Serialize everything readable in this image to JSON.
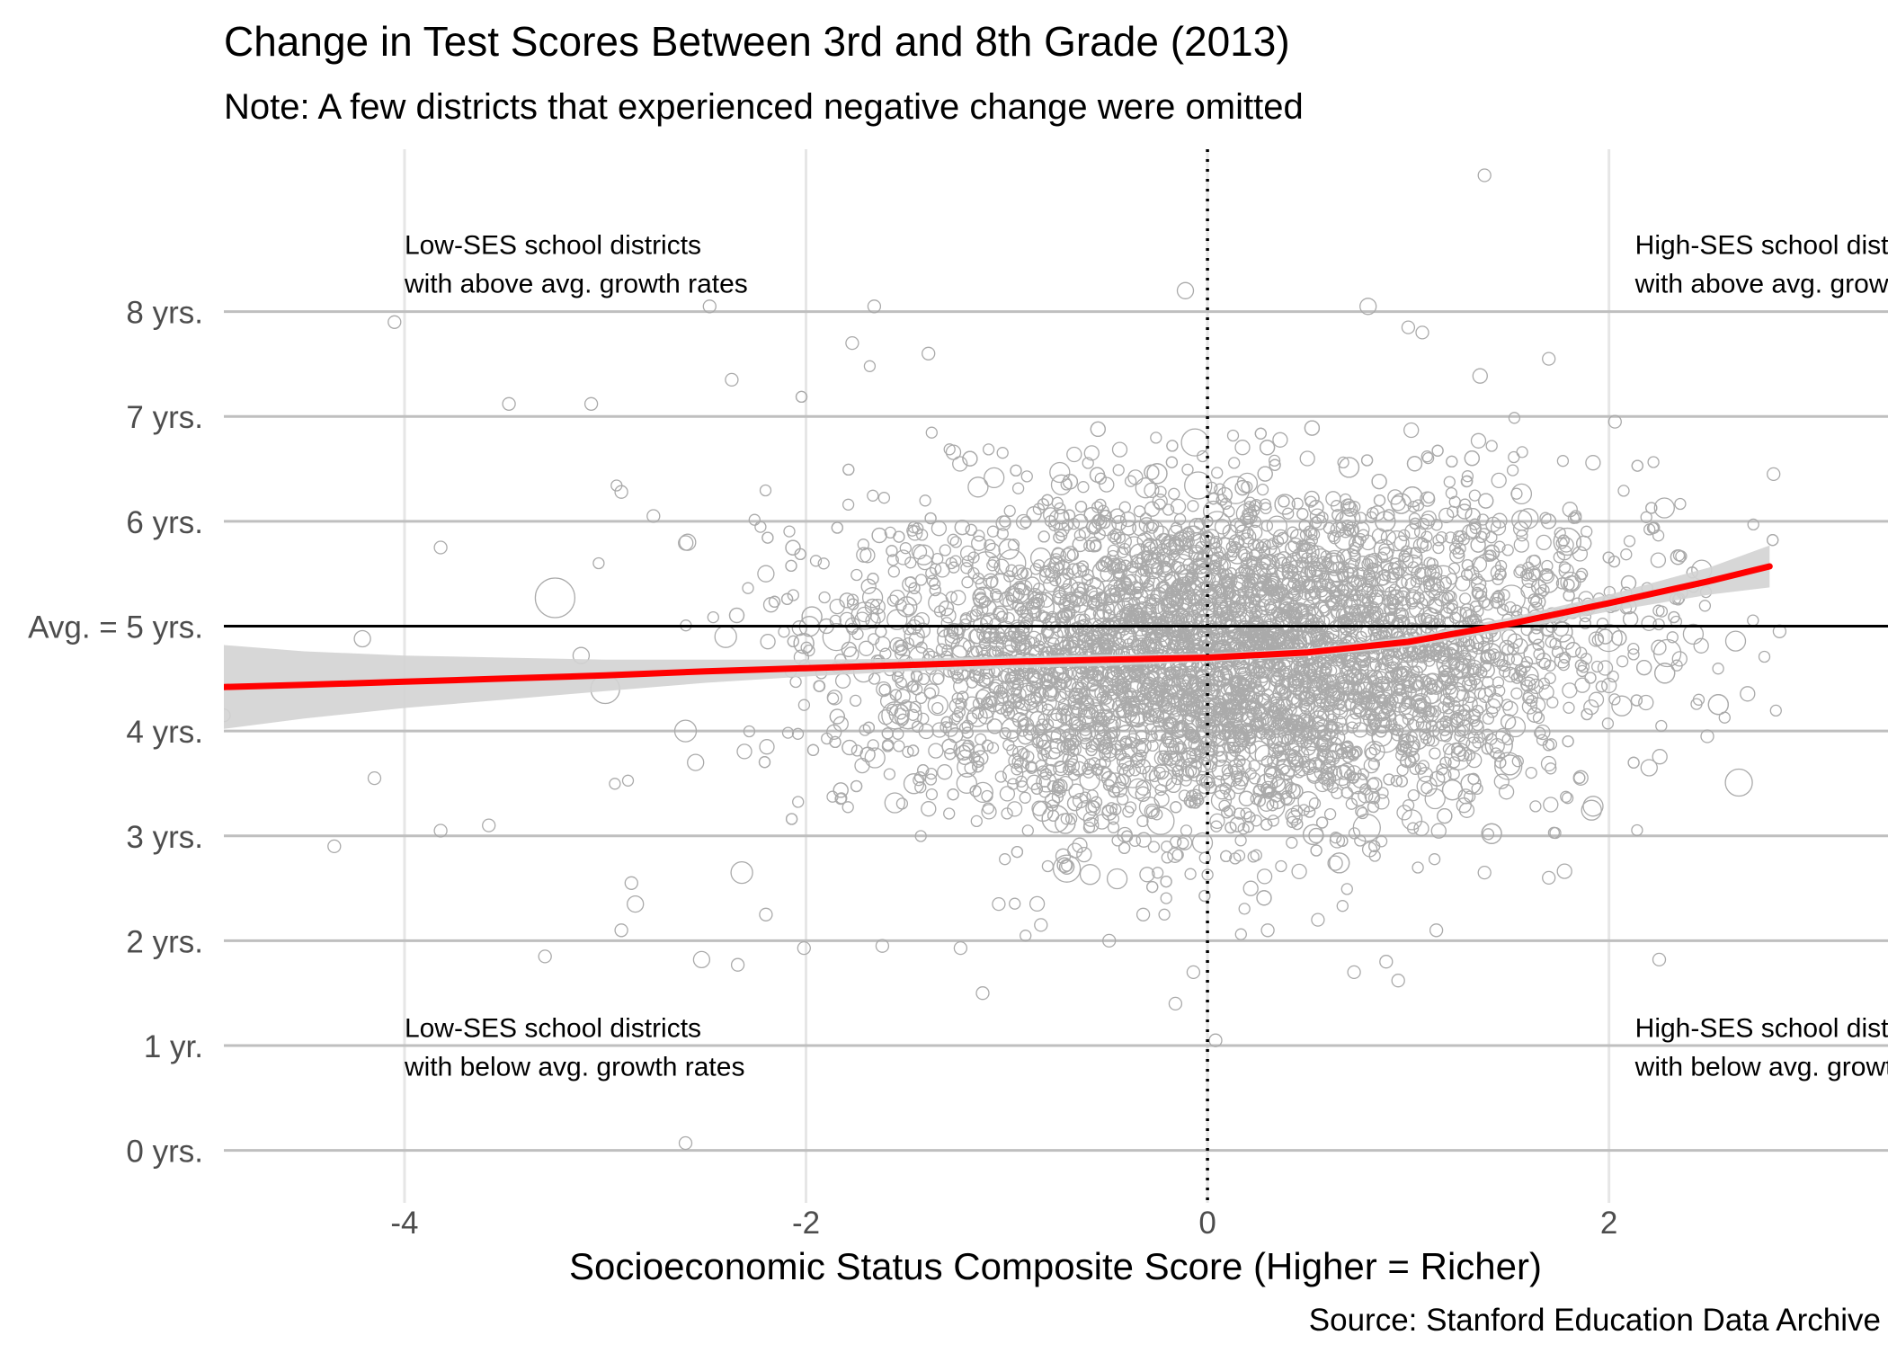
{
  "chart_data": {
    "type": "scatter",
    "title": "Change in Test Scores Between 3rd and 8th Grade (2013)",
    "subtitle": "Note: A few districts that experienced negative change were omitted",
    "xlabel": "Socioeconomic Status Composite Score (Higher = Richer)",
    "ylabel": "",
    "caption": "Source: Stanford Education Data Archive",
    "xlim": [
      -4.9,
      3.39
    ],
    "ylim": [
      -0.5,
      9.6
    ],
    "x_ticks": [
      {
        "value": -4,
        "label": "-4"
      },
      {
        "value": -2,
        "label": "-2"
      },
      {
        "value": 0,
        "label": "0"
      },
      {
        "value": 2,
        "label": "2"
      }
    ],
    "y_ticks": [
      {
        "value": 0,
        "label": "0 yrs."
      },
      {
        "value": 1,
        "label": "1 yr."
      },
      {
        "value": 2,
        "label": "2 yrs."
      },
      {
        "value": 3,
        "label": "3 yrs."
      },
      {
        "value": 4,
        "label": "4 yrs."
      },
      {
        "value": 5,
        "label": "Avg. = 5 yrs."
      },
      {
        "value": 6,
        "label": "6 yrs."
      },
      {
        "value": 7,
        "label": "7 yrs."
      },
      {
        "value": 8,
        "label": "8 yrs."
      }
    ],
    "reference_lines": {
      "horizontal": 5,
      "vertical": 0
    },
    "grid": true,
    "annotations": [
      {
        "x": -4.0,
        "y": 8.55,
        "lines": [
          "Low-SES school districts",
          "with above avg. growth rates"
        ]
      },
      {
        "x": 2.13,
        "y": 8.55,
        "lines": [
          "High-SES school districts",
          "with above avg. growth rates"
        ]
      },
      {
        "x": -4.0,
        "y": 1.08,
        "lines": [
          "Low-SES school districts",
          "with below avg. growth rates"
        ]
      },
      {
        "x": 2.13,
        "y": 1.08,
        "lines": [
          "High-SES school districts",
          "with below avg. growth rates"
        ]
      }
    ],
    "colors": {
      "points": "#aaaaaa",
      "smooth_line": "#ff0000",
      "confidence_band": "#d3d3d3",
      "grid": "#bfbfbf",
      "reference": "#000000"
    },
    "smooth_line": {
      "x": [
        -4.9,
        -4.5,
        -4.0,
        -3.5,
        -3.0,
        -2.5,
        -2.0,
        -1.5,
        -1.0,
        -0.5,
        0.0,
        0.5,
        1.0,
        1.5,
        2.0,
        2.5,
        2.8
      ],
      "y": [
        4.42,
        4.44,
        4.47,
        4.5,
        4.53,
        4.57,
        4.6,
        4.63,
        4.66,
        4.68,
        4.7,
        4.75,
        4.85,
        5.02,
        5.22,
        5.43,
        5.57
      ],
      "ci_lower": [
        4.02,
        4.12,
        4.22,
        4.3,
        4.38,
        4.46,
        4.52,
        4.57,
        4.6,
        4.62,
        4.66,
        4.71,
        4.8,
        4.96,
        5.14,
        5.3,
        5.37
      ],
      "ci_upper": [
        4.82,
        4.76,
        4.72,
        4.7,
        4.68,
        4.68,
        4.68,
        4.69,
        4.71,
        4.73,
        4.74,
        4.79,
        4.9,
        5.08,
        5.3,
        5.56,
        5.77
      ]
    },
    "points": [
      [
        -4.9,
        4.15,
        2
      ],
      [
        -4.05,
        7.9,
        2
      ],
      [
        -4.15,
        3.55,
        2
      ],
      [
        -4.35,
        2.9,
        2
      ],
      [
        -3.48,
        7.12,
        2
      ],
      [
        -3.07,
        7.12,
        2
      ],
      [
        -3.25,
        5.27,
        6
      ],
      [
        -3.3,
        1.85,
        2
      ],
      [
        -2.48,
        8.05,
        2
      ],
      [
        -2.37,
        7.35,
        2
      ],
      [
        -2.6,
        0.07,
        2
      ],
      [
        -2.52,
        1.82,
        3
      ],
      [
        -2.2,
        2.25,
        2
      ],
      [
        -2.01,
        1.93,
        2
      ],
      [
        -1.66,
        8.05,
        2
      ],
      [
        -2.32,
        2.65,
        4
      ],
      [
        -2.87,
        2.55,
        2
      ],
      [
        -1.39,
        7.6,
        2
      ],
      [
        -1.23,
        1.93,
        2
      ],
      [
        -1.12,
        1.5,
        2
      ],
      [
        -0.11,
        8.2,
        3
      ],
      [
        -0.07,
        1.7,
        2
      ],
      [
        -0.16,
        1.4,
        2
      ],
      [
        0.04,
        1.05,
        2
      ],
      [
        1.07,
        7.8,
        2
      ],
      [
        0.8,
        8.05,
        3
      ],
      [
        1.0,
        7.85,
        2
      ],
      [
        1.7,
        7.55,
        2
      ],
      [
        2.03,
        6.95,
        2
      ],
      [
        2.82,
        6.45,
        2
      ],
      [
        2.85,
        4.95,
        2
      ],
      [
        2.49,
        3.95,
        2
      ],
      [
        2.2,
        3.65,
        3
      ],
      [
        2.25,
        1.82,
        2
      ],
      [
        0.73,
        1.7,
        2
      ],
      [
        0.95,
        1.62,
        2
      ],
      [
        1.38,
        2.65,
        2
      ],
      [
        1.7,
        2.6,
        2
      ],
      [
        1.38,
        9.3,
        2
      ],
      [
        -1.77,
        7.7,
        2
      ],
      [
        -3.82,
        5.75,
        2
      ],
      [
        -4.21,
        4.88,
        3
      ],
      [
        -3.58,
        3.1,
        2
      ],
      [
        -3.82,
        3.05,
        2
      ],
      [
        -2.92,
        6.28,
        2
      ],
      [
        -2.76,
        6.05,
        2
      ],
      [
        -2.59,
        5.8,
        3
      ],
      [
        -3.12,
        4.72,
        3
      ],
      [
        -2.85,
        2.35,
        3
      ],
      [
        -2.92,
        2.1,
        2
      ],
      [
        -2.34,
        1.77,
        2
      ],
      [
        -1.62,
        1.95,
        2
      ],
      [
        -1.04,
        2.35,
        2
      ],
      [
        -0.83,
        2.15,
        2
      ],
      [
        -0.49,
        2.0,
        2
      ],
      [
        -0.32,
        2.25,
        2
      ],
      [
        0.3,
        2.1,
        2
      ],
      [
        0.55,
        2.2,
        2
      ],
      [
        1.14,
        2.1,
        2
      ],
      [
        0.89,
        1.8,
        2
      ],
      [
        -3.0,
        4.4,
        5
      ],
      [
        -2.6,
        4.0,
        4
      ],
      [
        -2.4,
        4.9,
        4
      ],
      [
        -2.2,
        5.5,
        3
      ],
      [
        -2.55,
        3.7,
        3
      ]
    ]
  }
}
